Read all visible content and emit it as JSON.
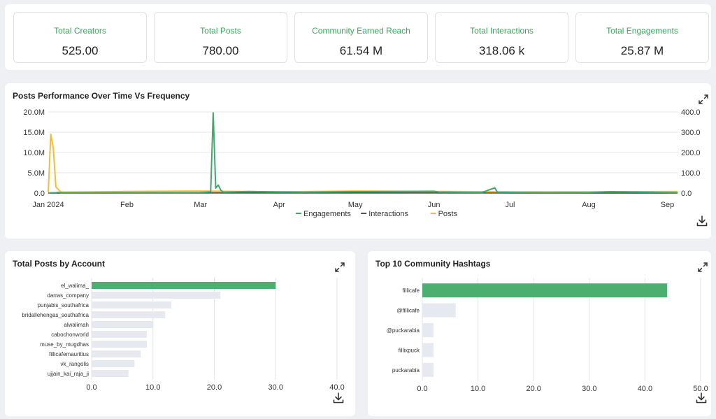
{
  "kpis": [
    {
      "label": "Total Creators",
      "value": "525.00"
    },
    {
      "label": "Total Posts",
      "value": "780.00"
    },
    {
      "label": "Community Earned Reach",
      "value": "61.54 M"
    },
    {
      "label": "Total Interactions",
      "value": "318.06 k"
    },
    {
      "label": "Total Engagements",
      "value": "25.87 M"
    }
  ],
  "colors": {
    "accent": "#3ca65b",
    "engagements": "#45a86b",
    "interactions": "#555555",
    "posts": "#f2bd3b",
    "bar_top": "#4caf70",
    "bar_other": "#e6e9ef",
    "grid": "#e4e6e9"
  },
  "icons": [
    "expand-icon",
    "download-icon"
  ],
  "chart_data": [
    {
      "type": "line",
      "title": "Posts Performance Over Time Vs Frequency",
      "x_tick_labels": [
        "Jan 2024",
        "Feb",
        "Mar",
        "Apr",
        "May",
        "Jun",
        "Jul",
        "Aug",
        "Sep"
      ],
      "y_left_ticks": [
        "0.0",
        "5.0M",
        "10.0M",
        "15.0M",
        "20.0M"
      ],
      "y_right_ticks": [
        "0.0",
        "100.0",
        "200.0",
        "300.0",
        "400.0"
      ],
      "ylim_left": [
        0,
        20000000
      ],
      "ylim_right": [
        0,
        400
      ],
      "xlim": [
        "2024-01-01",
        "2024-09-05"
      ],
      "legend_position": "bottom",
      "grid": true,
      "series": [
        {
          "name": "Engagements",
          "axis": "left",
          "points": [
            [
              "2024-01-01",
              50000
            ],
            [
              "2024-01-04",
              100000
            ],
            [
              "2024-01-05",
              200000
            ],
            [
              "2024-01-06",
              80000
            ],
            [
              "2024-02-01",
              100000
            ],
            [
              "2024-03-01",
              150000
            ],
            [
              "2024-03-05",
              300000
            ],
            [
              "2024-03-06",
              19800000
            ],
            [
              "2024-03-07",
              1200000
            ],
            [
              "2024-03-08",
              2000000
            ],
            [
              "2024-03-09",
              700000
            ],
            [
              "2024-03-10",
              200000
            ],
            [
              "2024-03-20",
              400000
            ],
            [
              "2024-04-10",
              200000
            ],
            [
              "2024-05-01",
              350000
            ],
            [
              "2024-06-01",
              450000
            ],
            [
              "2024-06-03",
              250000
            ],
            [
              "2024-06-20",
              150000
            ],
            [
              "2024-06-25",
              1300000
            ],
            [
              "2024-06-26",
              200000
            ],
            [
              "2024-07-15",
              100000
            ],
            [
              "2024-08-01",
              150000
            ],
            [
              "2024-08-10",
              350000
            ],
            [
              "2024-09-05",
              100000
            ]
          ]
        },
        {
          "name": "Interactions",
          "axis": "left",
          "points": [
            [
              "2024-01-01",
              20000
            ],
            [
              "2024-03-06",
              60000
            ],
            [
              "2024-06-25",
              30000
            ],
            [
              "2024-09-05",
              20000
            ]
          ]
        },
        {
          "name": "Posts",
          "axis": "right",
          "points": [
            [
              "2024-01-01",
              5
            ],
            [
              "2024-01-02",
              290
            ],
            [
              "2024-01-03",
              220
            ],
            [
              "2024-01-04",
              30
            ],
            [
              "2024-01-06",
              5
            ],
            [
              "2024-02-01",
              8
            ],
            [
              "2024-03-01",
              10
            ],
            [
              "2024-04-01",
              6
            ],
            [
              "2024-05-01",
              10
            ],
            [
              "2024-06-01",
              8
            ],
            [
              "2024-07-01",
              6
            ],
            [
              "2024-08-01",
              6
            ],
            [
              "2024-09-05",
              8
            ]
          ]
        }
      ]
    },
    {
      "type": "bar",
      "orientation": "horizontal",
      "title": "Total Posts by Account",
      "categories": [
        "el_walima_",
        "darras_company",
        "punjabis_southafrica",
        "bridallehengas_southafrica",
        "alwalimah",
        "cabochonworld",
        "muse_by_mugdhas",
        "fillicafemauritius",
        "vk_rangolis",
        "ujjain_kai_raja_ji"
      ],
      "values": [
        30,
        21,
        13,
        12,
        10,
        9,
        9,
        8,
        7,
        6
      ],
      "xlim": [
        0,
        40
      ],
      "x_tick_labels": [
        "0.0",
        "10.0",
        "20.0",
        "30.0",
        "40.0"
      ],
      "grid": true
    },
    {
      "type": "bar",
      "orientation": "horizontal",
      "title": "Top 10 Community Hashtags",
      "categories": [
        "fillicafe",
        "@fillicafe",
        "@puckarabia",
        "fillixpuck",
        "puckarabia"
      ],
      "values": [
        44,
        6,
        2,
        2,
        2
      ],
      "xlim": [
        0,
        50
      ],
      "x_tick_labels": [
        "0.0",
        "10.0",
        "20.0",
        "30.0",
        "40.0",
        "50.0"
      ],
      "grid": true
    }
  ]
}
